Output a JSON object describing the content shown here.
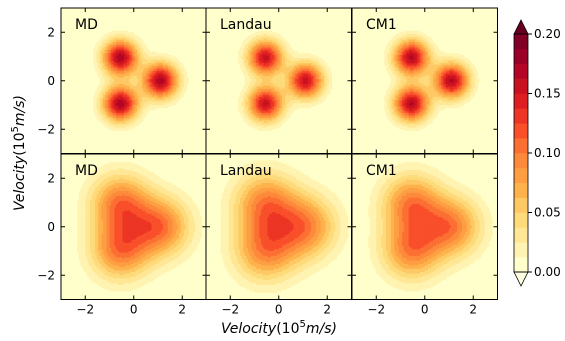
{
  "chart_data": [
    {
      "type": "heatmap",
      "panel": "top-left",
      "label": "MD",
      "x_ticks": [
        "−2",
        "0",
        "2"
      ],
      "y_ticks": [
        "−2",
        "0",
        "2"
      ],
      "xlim": [
        -3,
        3
      ],
      "ylim": [
        -3,
        3
      ],
      "peaks": [
        {
          "x": -0.55,
          "y": 0.95,
          "value": 0.17
        },
        {
          "x": -0.55,
          "y": -0.95,
          "value": 0.17
        },
        {
          "x": 1.1,
          "y": 0.0,
          "value": 0.17
        }
      ],
      "peak_width": 0.5
    },
    {
      "type": "heatmap",
      "panel": "top-middle",
      "label": "Landau",
      "x_ticks": [
        "−2",
        "0",
        "2"
      ],
      "y_ticks": [],
      "xlim": [
        -3,
        3
      ],
      "ylim": [
        -3,
        3
      ],
      "peaks": [
        {
          "x": -0.55,
          "y": 0.95,
          "value": 0.155
        },
        {
          "x": -0.55,
          "y": -0.95,
          "value": 0.155
        },
        {
          "x": 1.1,
          "y": 0.0,
          "value": 0.155
        }
      ],
      "peak_width": 0.5
    },
    {
      "type": "heatmap",
      "panel": "top-right",
      "label": "CM1",
      "x_ticks": [
        "−2",
        "0",
        "2"
      ],
      "y_ticks": [],
      "xlim": [
        -3,
        3
      ],
      "ylim": [
        -3,
        3
      ],
      "peaks": [
        {
          "x": -0.55,
          "y": 0.95,
          "value": 0.165
        },
        {
          "x": -0.55,
          "y": -0.95,
          "value": 0.165
        },
        {
          "x": 1.1,
          "y": 0.0,
          "value": 0.165
        }
      ],
      "peak_width": 0.5
    },
    {
      "type": "heatmap",
      "panel": "bottom-left",
      "label": "MD",
      "x_ticks": [
        "−2",
        "0",
        "2"
      ],
      "y_ticks": [
        "−2",
        "0",
        "2"
      ],
      "xlim": [
        -3,
        3
      ],
      "ylim": [
        -3,
        3
      ],
      "peaks": [
        {
          "x": -0.55,
          "y": 0.95,
          "value": 0.1
        },
        {
          "x": -0.55,
          "y": -0.95,
          "value": 0.1
        },
        {
          "x": 1.1,
          "y": 0.0,
          "value": 0.1
        }
      ],
      "peak_width": 0.85
    },
    {
      "type": "heatmap",
      "panel": "bottom-middle",
      "label": "Landau",
      "x_ticks": [
        "−2",
        "0",
        "2"
      ],
      "y_ticks": [],
      "xlim": [
        -3,
        3
      ],
      "ylim": [
        -3,
        3
      ],
      "peaks": [
        {
          "x": -0.55,
          "y": 0.95,
          "value": 0.092
        },
        {
          "x": -0.55,
          "y": -0.95,
          "value": 0.092
        },
        {
          "x": 1.1,
          "y": 0.0,
          "value": 0.092
        }
      ],
      "peak_width": 0.9
    },
    {
      "type": "heatmap",
      "panel": "bottom-right",
      "label": "CM1",
      "x_ticks": [
        "−2",
        "0",
        "2"
      ],
      "y_ticks": [],
      "xlim": [
        -3,
        3
      ],
      "ylim": [
        -3,
        3
      ],
      "peaks": [
        {
          "x": -0.55,
          "y": 0.95,
          "value": 0.095
        },
        {
          "x": -0.55,
          "y": -0.95,
          "value": 0.095
        },
        {
          "x": 1.1,
          "y": 0.0,
          "value": 0.095
        }
      ],
      "peak_width": 0.85
    }
  ],
  "axes": {
    "xlabel_word": "Velocity",
    "xlabel_unit_open": "(10",
    "xlabel_unit_exp": "5",
    "xlabel_unit_close": "m/s)",
    "ylabel_word": "Velocity",
    "ylabel_unit_open": "(10",
    "ylabel_unit_exp": "5",
    "ylabel_unit_close": "m/s)"
  },
  "colorbar": {
    "levels": [
      0.0,
      0.0125,
      0.025,
      0.0375,
      0.05,
      0.0625,
      0.075,
      0.0875,
      0.1,
      0.1125,
      0.125,
      0.1375,
      0.15,
      0.1625,
      0.175,
      0.1875,
      0.2
    ],
    "colors": [
      "#ffffcc",
      "#fff3b1",
      "#ffe795",
      "#fedb7a",
      "#fec965",
      "#feb24c",
      "#fd9e43",
      "#fd8a3a",
      "#fc6f33",
      "#f94f2a",
      "#ec3524",
      "#de1f21",
      "#c9121f",
      "#b40526",
      "#9b0026",
      "#800026"
    ],
    "tick_labels": [
      "0.00",
      "0.05",
      "0.10",
      "0.15",
      "0.20"
    ],
    "tick_values": [
      0.0,
      0.05,
      0.1,
      0.15,
      0.2
    ],
    "extend": "both"
  }
}
